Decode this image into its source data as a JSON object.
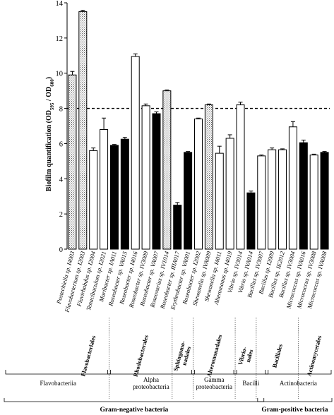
{
  "chart_data": {
    "type": "bar",
    "ylabel": "Biofilm quantification (OD595 / OD600)",
    "ylim": [
      0,
      14
    ],
    "yticks": [
      "0",
      "2",
      "4",
      "6",
      "8",
      "10",
      "12",
      "14"
    ],
    "reference_line": 8,
    "categories": [
      "Postechiella sp. I4003",
      "Flavobacterium sp. I2003",
      "Flavirhabdus sp. I2004",
      "Tenacibaculum sp. I2021",
      "Maribacter sp. IA011",
      "Roseobacter sp. VA015",
      "Roseobacter sp. I4016",
      "Roseobacter sp. IV3009",
      "Roseobacter sp. VA007",
      "Roseovarius sp. IV1014",
      "Roseobacter sp. IIIA017",
      "Erythrobacter sp. VA001",
      "Roseobacter sp. I2002",
      "Shewanella sp. IVA009",
      "Shewanella sp. I4011",
      "Alteromonas sp. I4019",
      "Vibrio sp. IV3014",
      "Vibrio sp. IVA014",
      "Bacillus sp. IV3007",
      "Bacillus sp. I2009",
      "Bacillus sp. IE2012",
      "Bacillus sp. IV3004",
      "Micrococcus sp. IVA016",
      "Micrococcus sp. IV3008",
      "Micrococcus sp. IVA008"
    ],
    "values": [
      9.9,
      13.5,
      5.6,
      6.8,
      5.9,
      6.25,
      10.95,
      8.15,
      7.7,
      9.0,
      2.5,
      5.5,
      7.4,
      8.2,
      5.45,
      6.3,
      8.2,
      3.2,
      5.3,
      5.65,
      5.65,
      6.95,
      6.05,
      5.35,
      5.5
    ],
    "errors": [
      0.2,
      0.08,
      0.15,
      0.65,
      0.05,
      0.1,
      0.15,
      0.1,
      0.1,
      0.05,
      0.15,
      0.05,
      0.05,
      0.05,
      0.4,
      0.2,
      0.15,
      0.1,
      0.05,
      0.1,
      0.05,
      0.3,
      0.15,
      0.05,
      0.05
    ],
    "fills": [
      "dots",
      "dots",
      "white",
      "white",
      "black",
      "black",
      "white",
      "white",
      "black",
      "dots",
      "black",
      "black",
      "white",
      "dots",
      "white",
      "white",
      "white",
      "black",
      "white",
      "white",
      "white",
      "white",
      "black",
      "white",
      "black"
    ],
    "orders": [
      {
        "label": "Flavobacteriales",
        "start": 0,
        "end": 3
      },
      {
        "label": "Rhodobacterales",
        "start": 4,
        "end": 9
      },
      {
        "label": "Sphingomo-nadales",
        "start": 10,
        "end": 11
      },
      {
        "label": "Alteromonadales",
        "start": 12,
        "end": 15
      },
      {
        "label": "Vibrio-nales",
        "start": 16,
        "end": 17
      },
      {
        "label": "Bacillales",
        "start": 18,
        "end": 21
      },
      {
        "label": "Actinomycetales",
        "start": 22,
        "end": 24
      }
    ],
    "classes": [
      {
        "label": "Flavobacteriia",
        "start": 0,
        "end": 3
      },
      {
        "label": "Alpha proteobacteria",
        "start": 4,
        "end": 11
      },
      {
        "label": "Gamma proteobacteria",
        "start": 12,
        "end": 15
      },
      {
        "label": "Bacilli",
        "start": 16,
        "end": 18
      },
      {
        "label": "Actinobacteria",
        "start": 19,
        "end": 24
      }
    ],
    "groups": [
      {
        "label": "Gram-negative bacteria",
        "start": 0,
        "end": 18
      },
      {
        "label": "Gram-positive bacteria",
        "start": 18,
        "end": 24
      }
    ]
  }
}
